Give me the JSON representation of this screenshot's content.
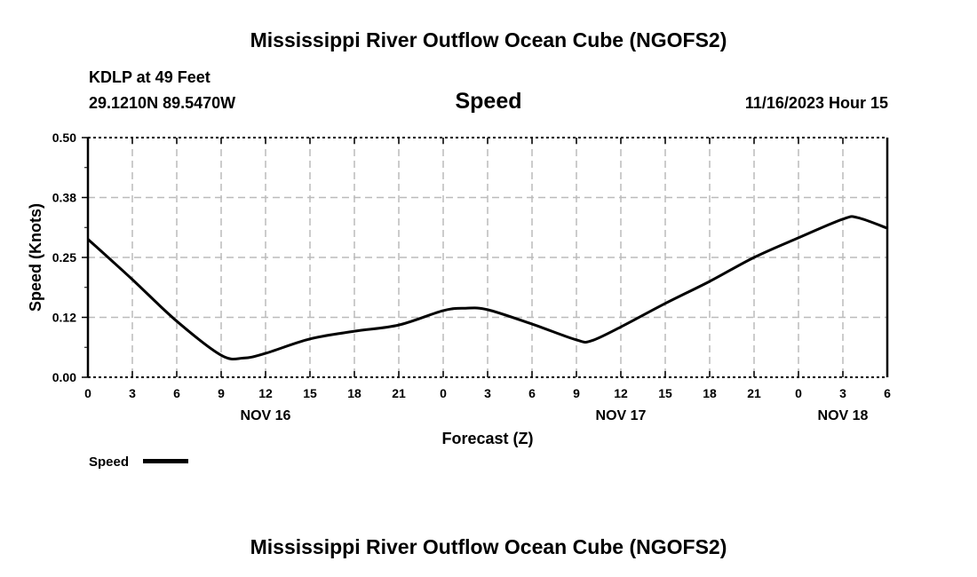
{
  "header": {
    "title": "Mississippi River Outflow Ocean Cube (NGOFS2)",
    "station": "KDLP at 49 Feet",
    "coords": "29.1210N  89.5470W",
    "panel_title": "Speed",
    "datetime": "11/16/2023 Hour 15"
  },
  "footer": {
    "title": "Mississippi River Outflow Ocean Cube (NGOFS2)"
  },
  "chart_data": {
    "type": "line",
    "title": "Speed",
    "xlabel": "Forecast (Z)",
    "ylabel": "Speed (Knots)",
    "xlim": [
      0,
      54
    ],
    "ylim": [
      0,
      0.5
    ],
    "grid": true,
    "legend_position": "bottom-left",
    "y_ticks": [
      {
        "v": 0,
        "label": "0.00"
      },
      {
        "v": 0.125,
        "label": "0.12"
      },
      {
        "v": 0.25,
        "label": "0.25"
      },
      {
        "v": 0.375,
        "label": "0.38"
      },
      {
        "v": 0.5,
        "label": "0.50"
      }
    ],
    "x_tick_labels": [
      "0",
      "3",
      "6",
      "9",
      "12",
      "15",
      "18",
      "21",
      "0",
      "3",
      "6",
      "9",
      "12",
      "15",
      "18",
      "21",
      "0",
      "3",
      "6"
    ],
    "date_labels": [
      {
        "hour": 12,
        "label": "NOV 16"
      },
      {
        "hour": 36,
        "label": "NOV 17"
      },
      {
        "hour": 51,
        "label": "NOV 18"
      }
    ],
    "series": [
      {
        "name": "Speed",
        "color": "#000000",
        "x": [
          0,
          3,
          6,
          9,
          10.5,
          12,
          15,
          18,
          21,
          24,
          25.5,
          27,
          30,
          33,
          34,
          36,
          39,
          42,
          45,
          48,
          51,
          52,
          54
        ],
        "y": [
          0.288,
          0.204,
          0.117,
          0.046,
          0.04,
          0.05,
          0.08,
          0.096,
          0.109,
          0.139,
          0.144,
          0.141,
          0.111,
          0.078,
          0.076,
          0.105,
          0.154,
          0.2,
          0.25,
          0.291,
          0.33,
          0.333,
          0.311
        ]
      }
    ]
  }
}
